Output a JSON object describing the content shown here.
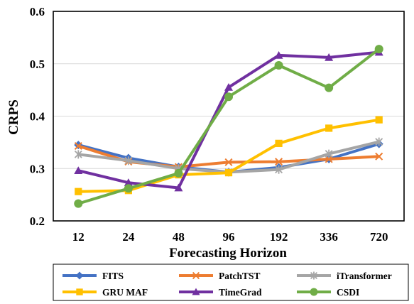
{
  "chart_data": {
    "type": "line",
    "xlabel": "Forecasting Horizon",
    "ylabel": "CRPS",
    "categories": [
      "12",
      "24",
      "48",
      "96",
      "192",
      "336",
      "720"
    ],
    "ylim": [
      0.2,
      0.6
    ],
    "yticks": [
      0.2,
      0.3,
      0.4,
      0.5,
      0.6
    ],
    "grid": "horizontal",
    "legend_position": "bottom",
    "series": [
      {
        "name": "FITS",
        "color": "#4472C4",
        "marker": "diamond",
        "values": [
          0.345,
          0.32,
          0.303,
          0.293,
          0.302,
          0.318,
          0.347
        ]
      },
      {
        "name": "PatchTST",
        "color": "#ED7D31",
        "marker": "x",
        "values": [
          0.343,
          0.313,
          0.303,
          0.312,
          0.313,
          0.318,
          0.323
        ]
      },
      {
        "name": "iTransformer",
        "color": "#A5A5A5",
        "marker": "star",
        "values": [
          0.327,
          0.315,
          0.3,
          0.293,
          0.298,
          0.328,
          0.351
        ]
      },
      {
        "name": "GRU MAF",
        "color": "#FFC000",
        "marker": "square",
        "values": [
          0.256,
          0.258,
          0.288,
          0.292,
          0.348,
          0.377,
          0.393
        ]
      },
      {
        "name": "TimeGrad",
        "color": "#7030A0",
        "marker": "triangle",
        "values": [
          0.296,
          0.273,
          0.263,
          0.455,
          0.516,
          0.512,
          0.522
        ]
      },
      {
        "name": "CSDI",
        "color": "#70AD47",
        "marker": "circle",
        "values": [
          0.233,
          0.262,
          0.291,
          0.437,
          0.497,
          0.454,
          0.528
        ]
      }
    ]
  }
}
